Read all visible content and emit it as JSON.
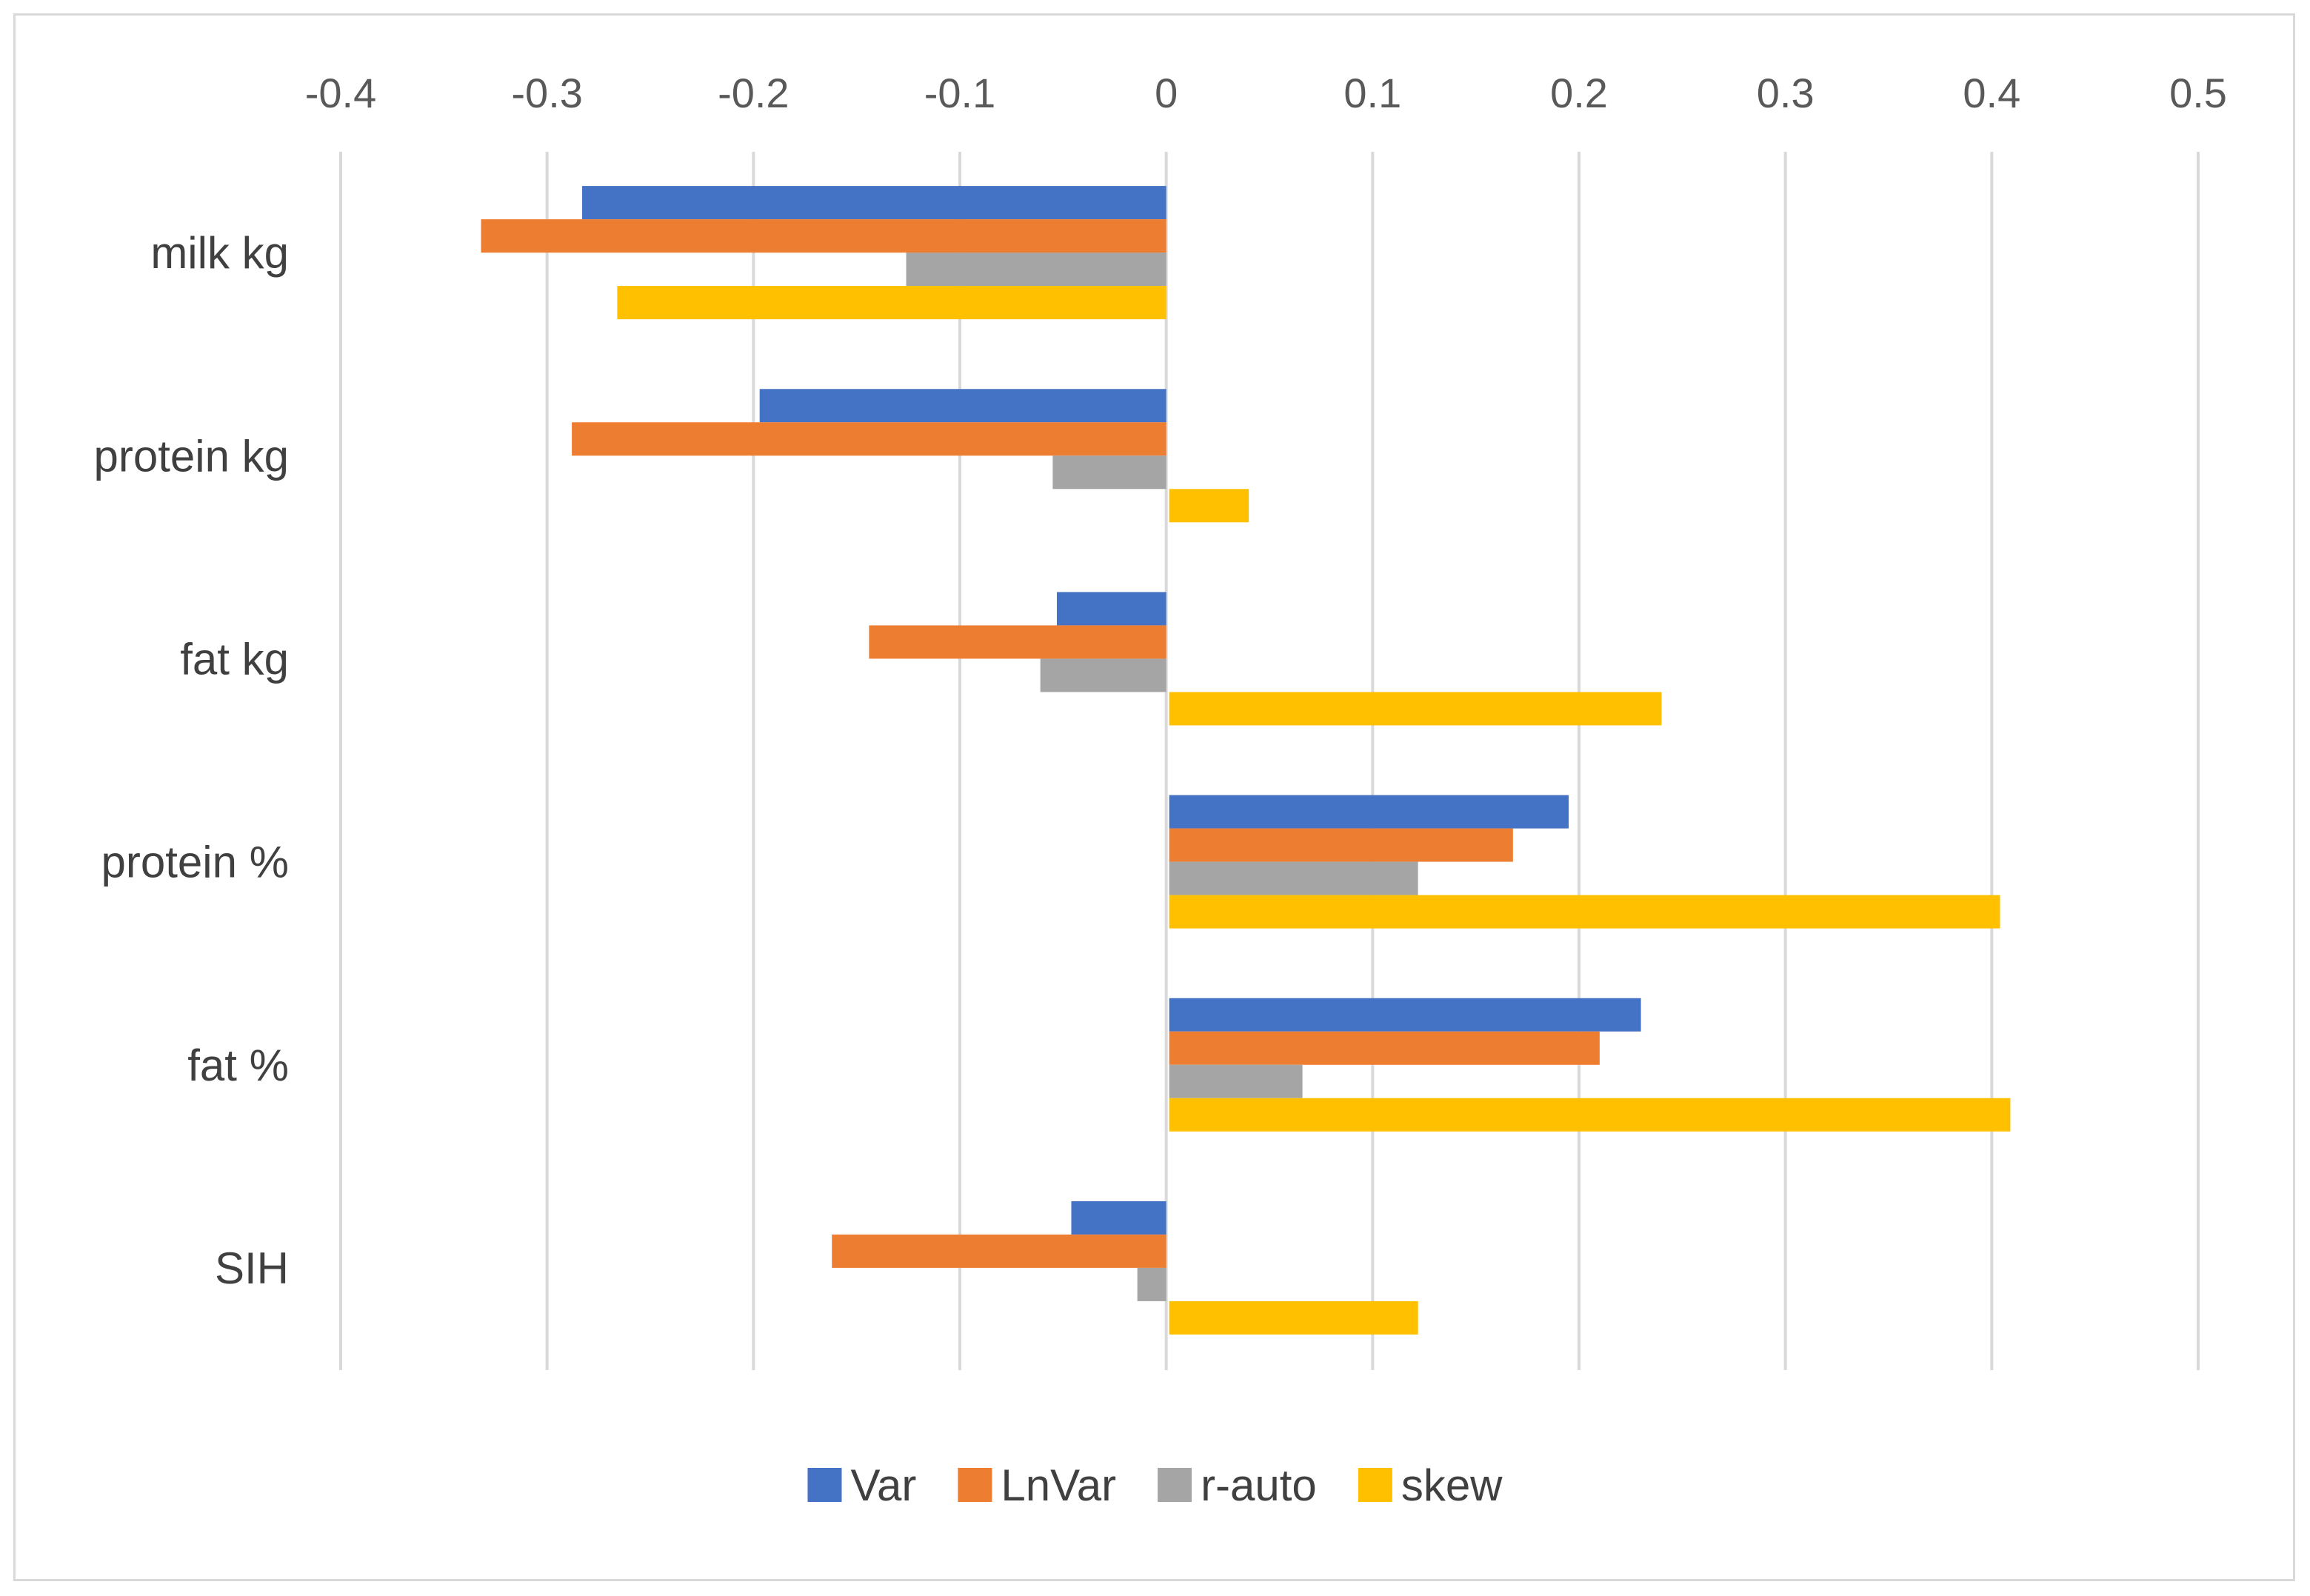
{
  "chart_data": {
    "type": "bar",
    "orientation": "horizontal",
    "title": "",
    "xlabel": "",
    "ylabel": "",
    "xlim": [
      -0.4,
      0.5
    ],
    "x_ticks": [
      -0.4,
      -0.3,
      -0.2,
      -0.1,
      0,
      0.1,
      0.2,
      0.3,
      0.4,
      0.5
    ],
    "x_tick_labels": [
      "-0.4",
      "-0.3",
      "-0.2",
      "-0.1",
      "0",
      "0.1",
      "0.2",
      "0.3",
      "0.4",
      "0.5"
    ],
    "x_axis_position": "top",
    "grid": true,
    "legend_position": "bottom",
    "categories": [
      "milk kg",
      "protein kg",
      "fat kg",
      "protein %",
      "fat %",
      "SIH"
    ],
    "series": [
      {
        "name": "Var",
        "color": "#4472C4",
        "values": [
          -0.283,
          -0.197,
          -0.053,
          0.195,
          0.23,
          -0.046
        ]
      },
      {
        "name": "LnVar",
        "color": "#ED7D31",
        "values": [
          -0.332,
          -0.288,
          -0.144,
          0.168,
          0.21,
          -0.162
        ]
      },
      {
        "name": "r-auto",
        "color": "#A5A5A5",
        "values": [
          -0.126,
          -0.055,
          -0.061,
          0.122,
          0.066,
          -0.014
        ]
      },
      {
        "name": "skew",
        "color": "#FFC000",
        "values": [
          -0.266,
          0.04,
          0.24,
          0.404,
          0.409,
          0.122
        ]
      }
    ]
  }
}
